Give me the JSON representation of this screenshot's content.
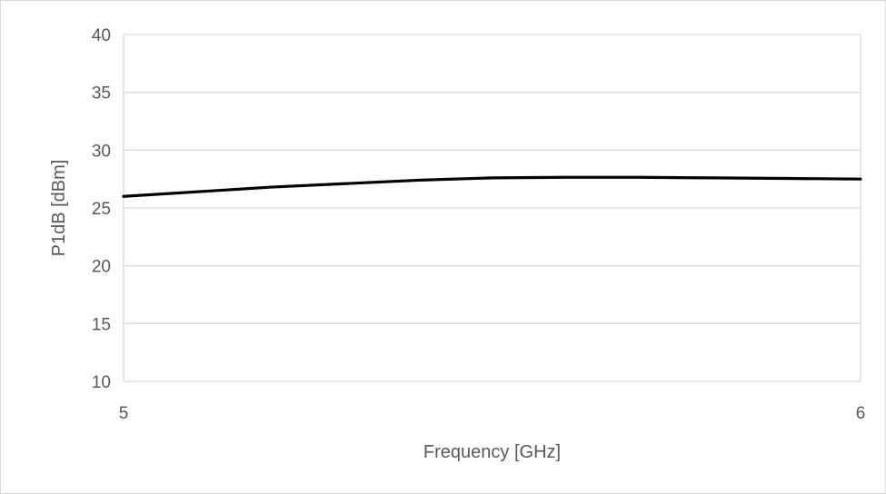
{
  "chart_data": {
    "type": "line",
    "title": "",
    "xlabel": "Frequency [GHz]",
    "ylabel": "P1dB [dBm]",
    "xlim": [
      5,
      6
    ],
    "ylim": [
      10,
      40
    ],
    "x_ticks": [
      "5",
      "6"
    ],
    "y_ticks": [
      "10",
      "15",
      "20",
      "25",
      "30",
      "35",
      "40"
    ],
    "grid": true,
    "legend": "none",
    "line_color": "#000000",
    "grid_color": "#d9d9d9",
    "tick_color": "#595959",
    "series": [
      {
        "x": [
          5.0,
          5.1,
          5.2,
          5.3,
          5.4,
          5.5,
          5.6,
          5.7,
          5.8,
          5.9,
          6.0
        ],
        "values": [
          26.0,
          26.4,
          26.8,
          27.1,
          27.4,
          27.6,
          27.65,
          27.65,
          27.6,
          27.55,
          27.5
        ]
      }
    ]
  }
}
